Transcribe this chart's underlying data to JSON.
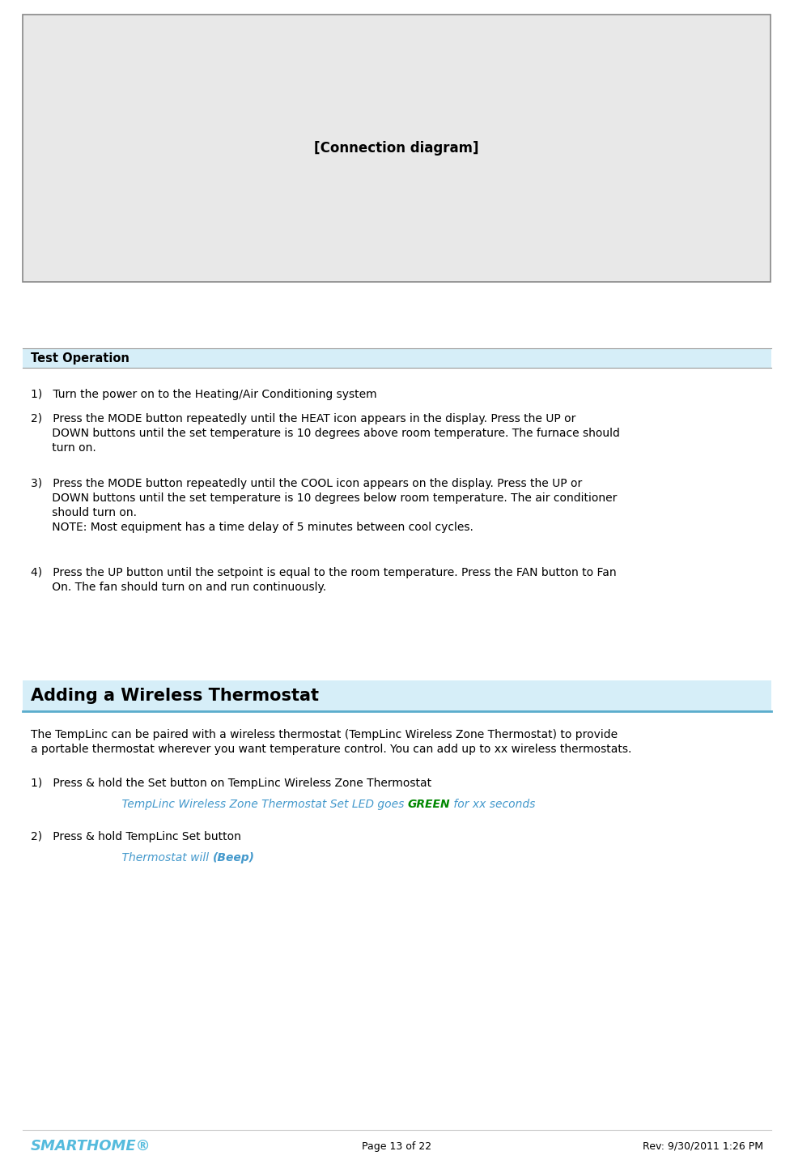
{
  "page_bg": "#ffffff",
  "diagram_bg": "#e8e8e8",
  "diagram_border": "#888888",
  "diagram_text": "[Connection diagram]",
  "section1_header": "Test Operation",
  "section1_header_bg": "#d6eef8",
  "section1_header_text_color": "#000000",
  "section2_header": "Adding a Wireless Thermostat",
  "section2_header_bg": "#d6eef8",
  "section2_header_border_color": "#5aaccc",
  "body_text_color": "#000000",
  "body_font_size": 10.0,
  "header1_font_size": 10.5,
  "header2_font_size": 15,
  "smarthome_color": "#55bbdd",
  "smarthome_text": "SMARTHOME®",
  "footer_page": "Page 13 of 22",
  "footer_rev": "Rev: 9/30/2011 1:26 PM",
  "italic_blue_color": "#4499cc",
  "green_color": "#008800",
  "item1": "1)   Turn the power on to the Heating/Air Conditioning system",
  "item2_line1": "2)   Press the MODE button repeatedly until the HEAT icon appears in the display. Press the UP or",
  "item2_line2": "      DOWN buttons until the set temperature is 10 degrees above room temperature. The furnace should",
  "item2_line3": "      turn on.",
  "item3_line1": "3)   Press the MODE button repeatedly until the COOL icon appears on the display. Press the UP or",
  "item3_line2": "      DOWN buttons until the set temperature is 10 degrees below room temperature. The air conditioner",
  "item3_line3": "      should turn on.",
  "item3_note": "      NOTE: Most equipment has a time delay of 5 minutes between cool cycles.",
  "item4_line1": "4)   Press the UP button until the setpoint is equal to the room temperature. Press the FAN button to Fan",
  "item4_line2": "      On. The fan should turn on and run continuously.",
  "wireless_intro1": "The TempLinc can be paired with a wireless thermostat (TempLinc Wireless Zone Thermostat) to provide",
  "wireless_intro2": "a portable thermostat wherever you want temperature control. You can add up to xx wireless thermostats.",
  "wireless_item1_plain": "1)   Press & hold the Set button on TempLinc Wireless Zone Thermostat",
  "wireless_item1_italic_before": "            TempLinc Wireless Zone Thermostat Set LED goes ",
  "wireless_item1_green": "GREEN",
  "wireless_item1_italic_after": " for xx seconds",
  "wireless_item2_plain": "2)   Press & hold TempLinc Set button",
  "wireless_item2_italic": "            Thermostat will ",
  "wireless_item2_bold": "(Beep)"
}
